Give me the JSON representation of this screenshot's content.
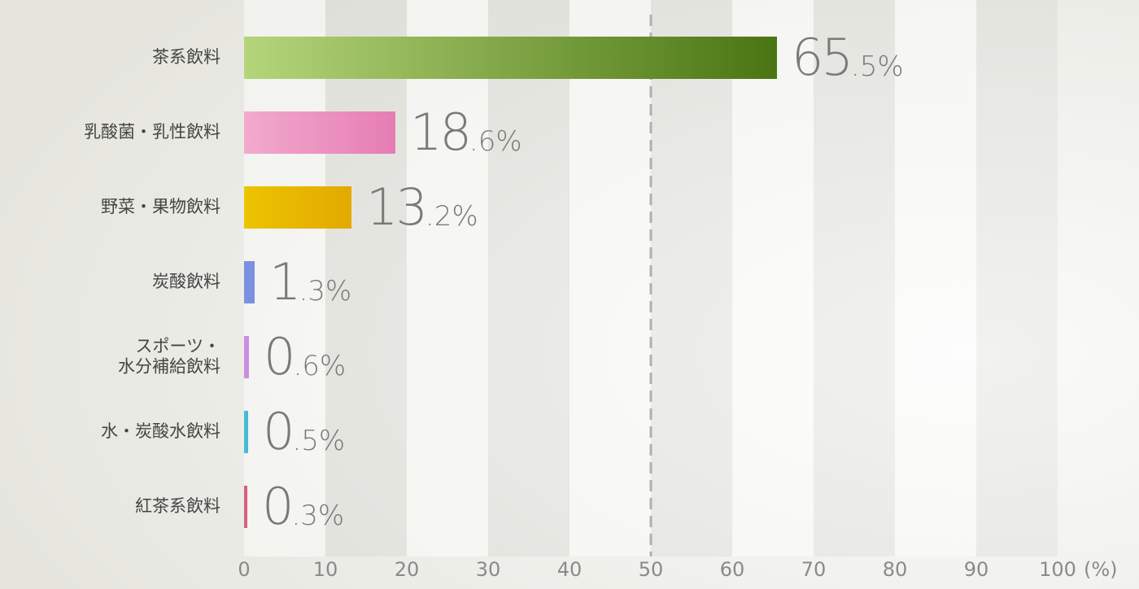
{
  "chart_data": {
    "type": "hbar",
    "categories": [
      "茶系飲料",
      "乳酸菌・乳性飲料",
      "野菜・果物飲料",
      "炭酸飲料",
      "スポーツ・\n水分補給飲料",
      "水・炭酸水飲料",
      "紅茶系飲料"
    ],
    "values": [
      65.5,
      18.6,
      13.2,
      1.3,
      0.6,
      0.5,
      0.3
    ],
    "value_labels": [
      "65.5%",
      "18.6%",
      "13.2%",
      "1.3%",
      "0.6%",
      "0.5%",
      "0.3%"
    ],
    "colors": [
      [
        "#b5d57a",
        "#4a7512"
      ],
      [
        "#f2aacd",
        "#e57db4"
      ],
      [
        "#ecc400",
        "#e3a900"
      ],
      [
        "#7c90e2",
        "#7c90e2"
      ],
      [
        "#c98fe2",
        "#c98fe2"
      ],
      [
        "#45b9d9",
        "#45b9d9"
      ],
      [
        "#d4627c",
        "#d4627c"
      ]
    ],
    "xlim": [
      0,
      100
    ],
    "xticks": [
      0,
      10,
      20,
      30,
      40,
      50,
      60,
      70,
      80,
      90,
      100
    ],
    "x_unit": "(%)",
    "reference_line": 50
  }
}
